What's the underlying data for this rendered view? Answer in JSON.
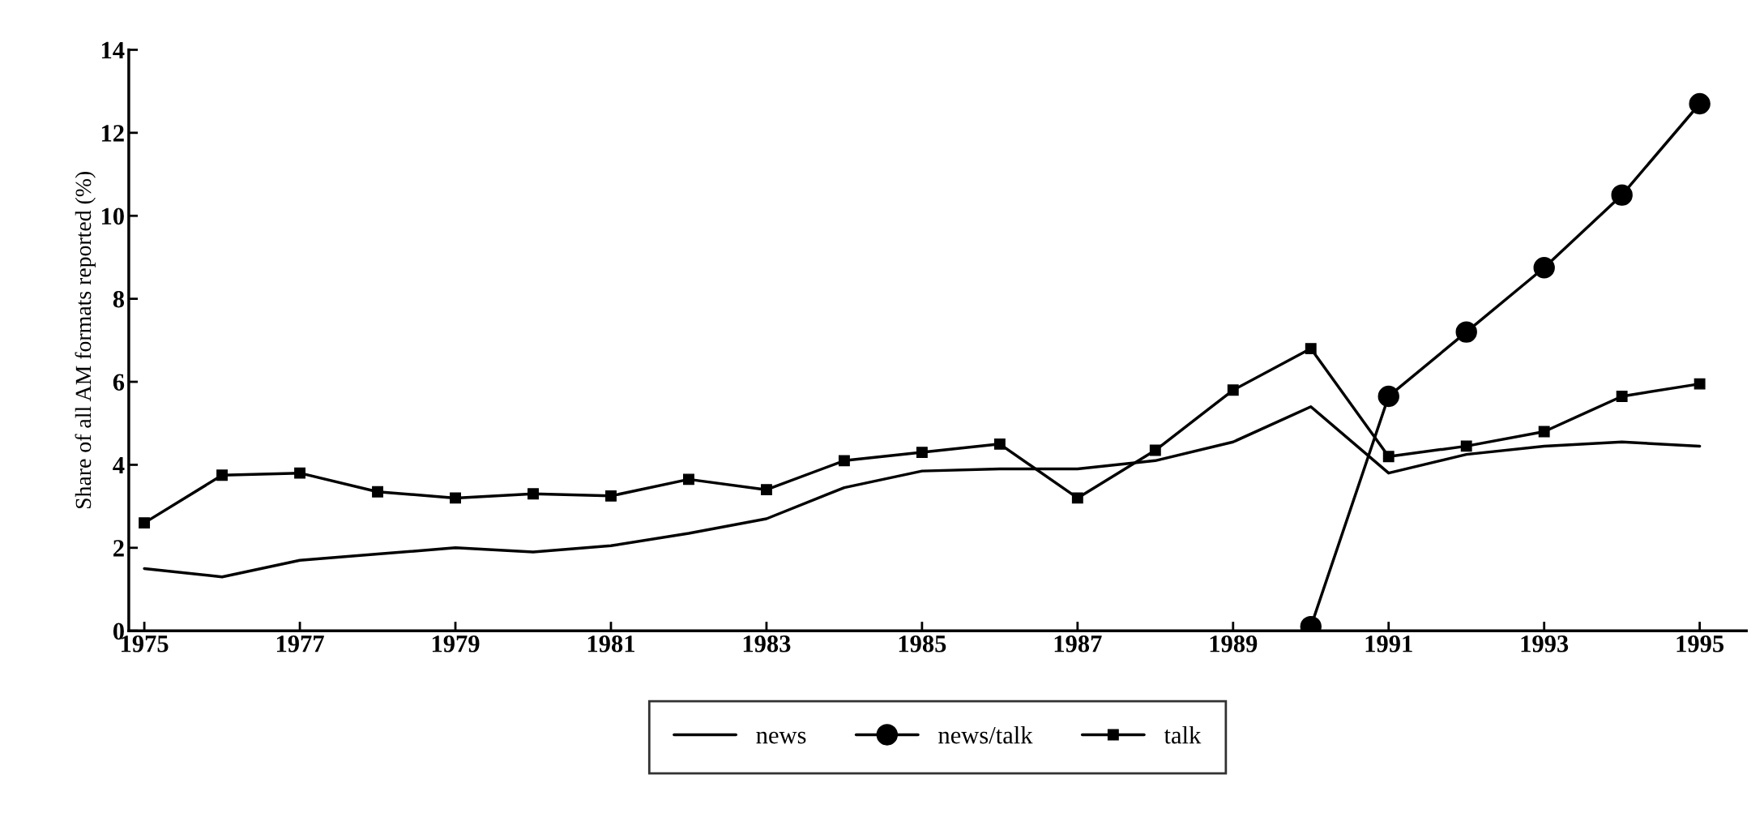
{
  "chart_data": {
    "type": "line",
    "ylabel": "Share of all AM formats reported (%)",
    "x": [
      1975,
      1976,
      1977,
      1978,
      1979,
      1980,
      1981,
      1982,
      1983,
      1984,
      1985,
      1986,
      1987,
      1988,
      1989,
      1990,
      1991,
      1992,
      1993,
      1994,
      1995
    ],
    "series": [
      {
        "name": "news",
        "color": "#000000",
        "marker": "none",
        "values": [
          1.5,
          1.3,
          1.7,
          1.85,
          2.0,
          1.9,
          2.05,
          2.35,
          2.7,
          3.45,
          3.85,
          3.9,
          3.9,
          4.1,
          4.55,
          5.4,
          3.8,
          4.25,
          4.45,
          4.55,
          4.45
        ]
      },
      {
        "name": "news/talk",
        "color": "#000000",
        "marker": "circle",
        "values": [
          null,
          null,
          null,
          null,
          null,
          null,
          null,
          null,
          null,
          null,
          null,
          null,
          null,
          null,
          null,
          0.1,
          5.65,
          7.2,
          8.75,
          10.5,
          12.7
        ]
      },
      {
        "name": "talk",
        "color": "#000000",
        "marker": "square",
        "values": [
          2.6,
          3.75,
          3.8,
          3.35,
          3.2,
          3.3,
          3.25,
          3.65,
          3.4,
          4.1,
          4.3,
          4.5,
          3.2,
          4.35,
          5.8,
          6.8,
          4.2,
          4.45,
          4.8,
          5.65,
          5.95
        ]
      }
    ],
    "xlim": [
      1974.8,
      1995.6
    ],
    "xticks": [
      1975,
      1977,
      1979,
      1981,
      1983,
      1985,
      1987,
      1989,
      1991,
      1993,
      1995
    ],
    "ylim": [
      0,
      14
    ],
    "yticks": [
      0,
      2,
      4,
      6,
      8,
      10,
      12,
      14
    ],
    "grid": false,
    "legend": "bottom",
    "line_style": "solid"
  }
}
